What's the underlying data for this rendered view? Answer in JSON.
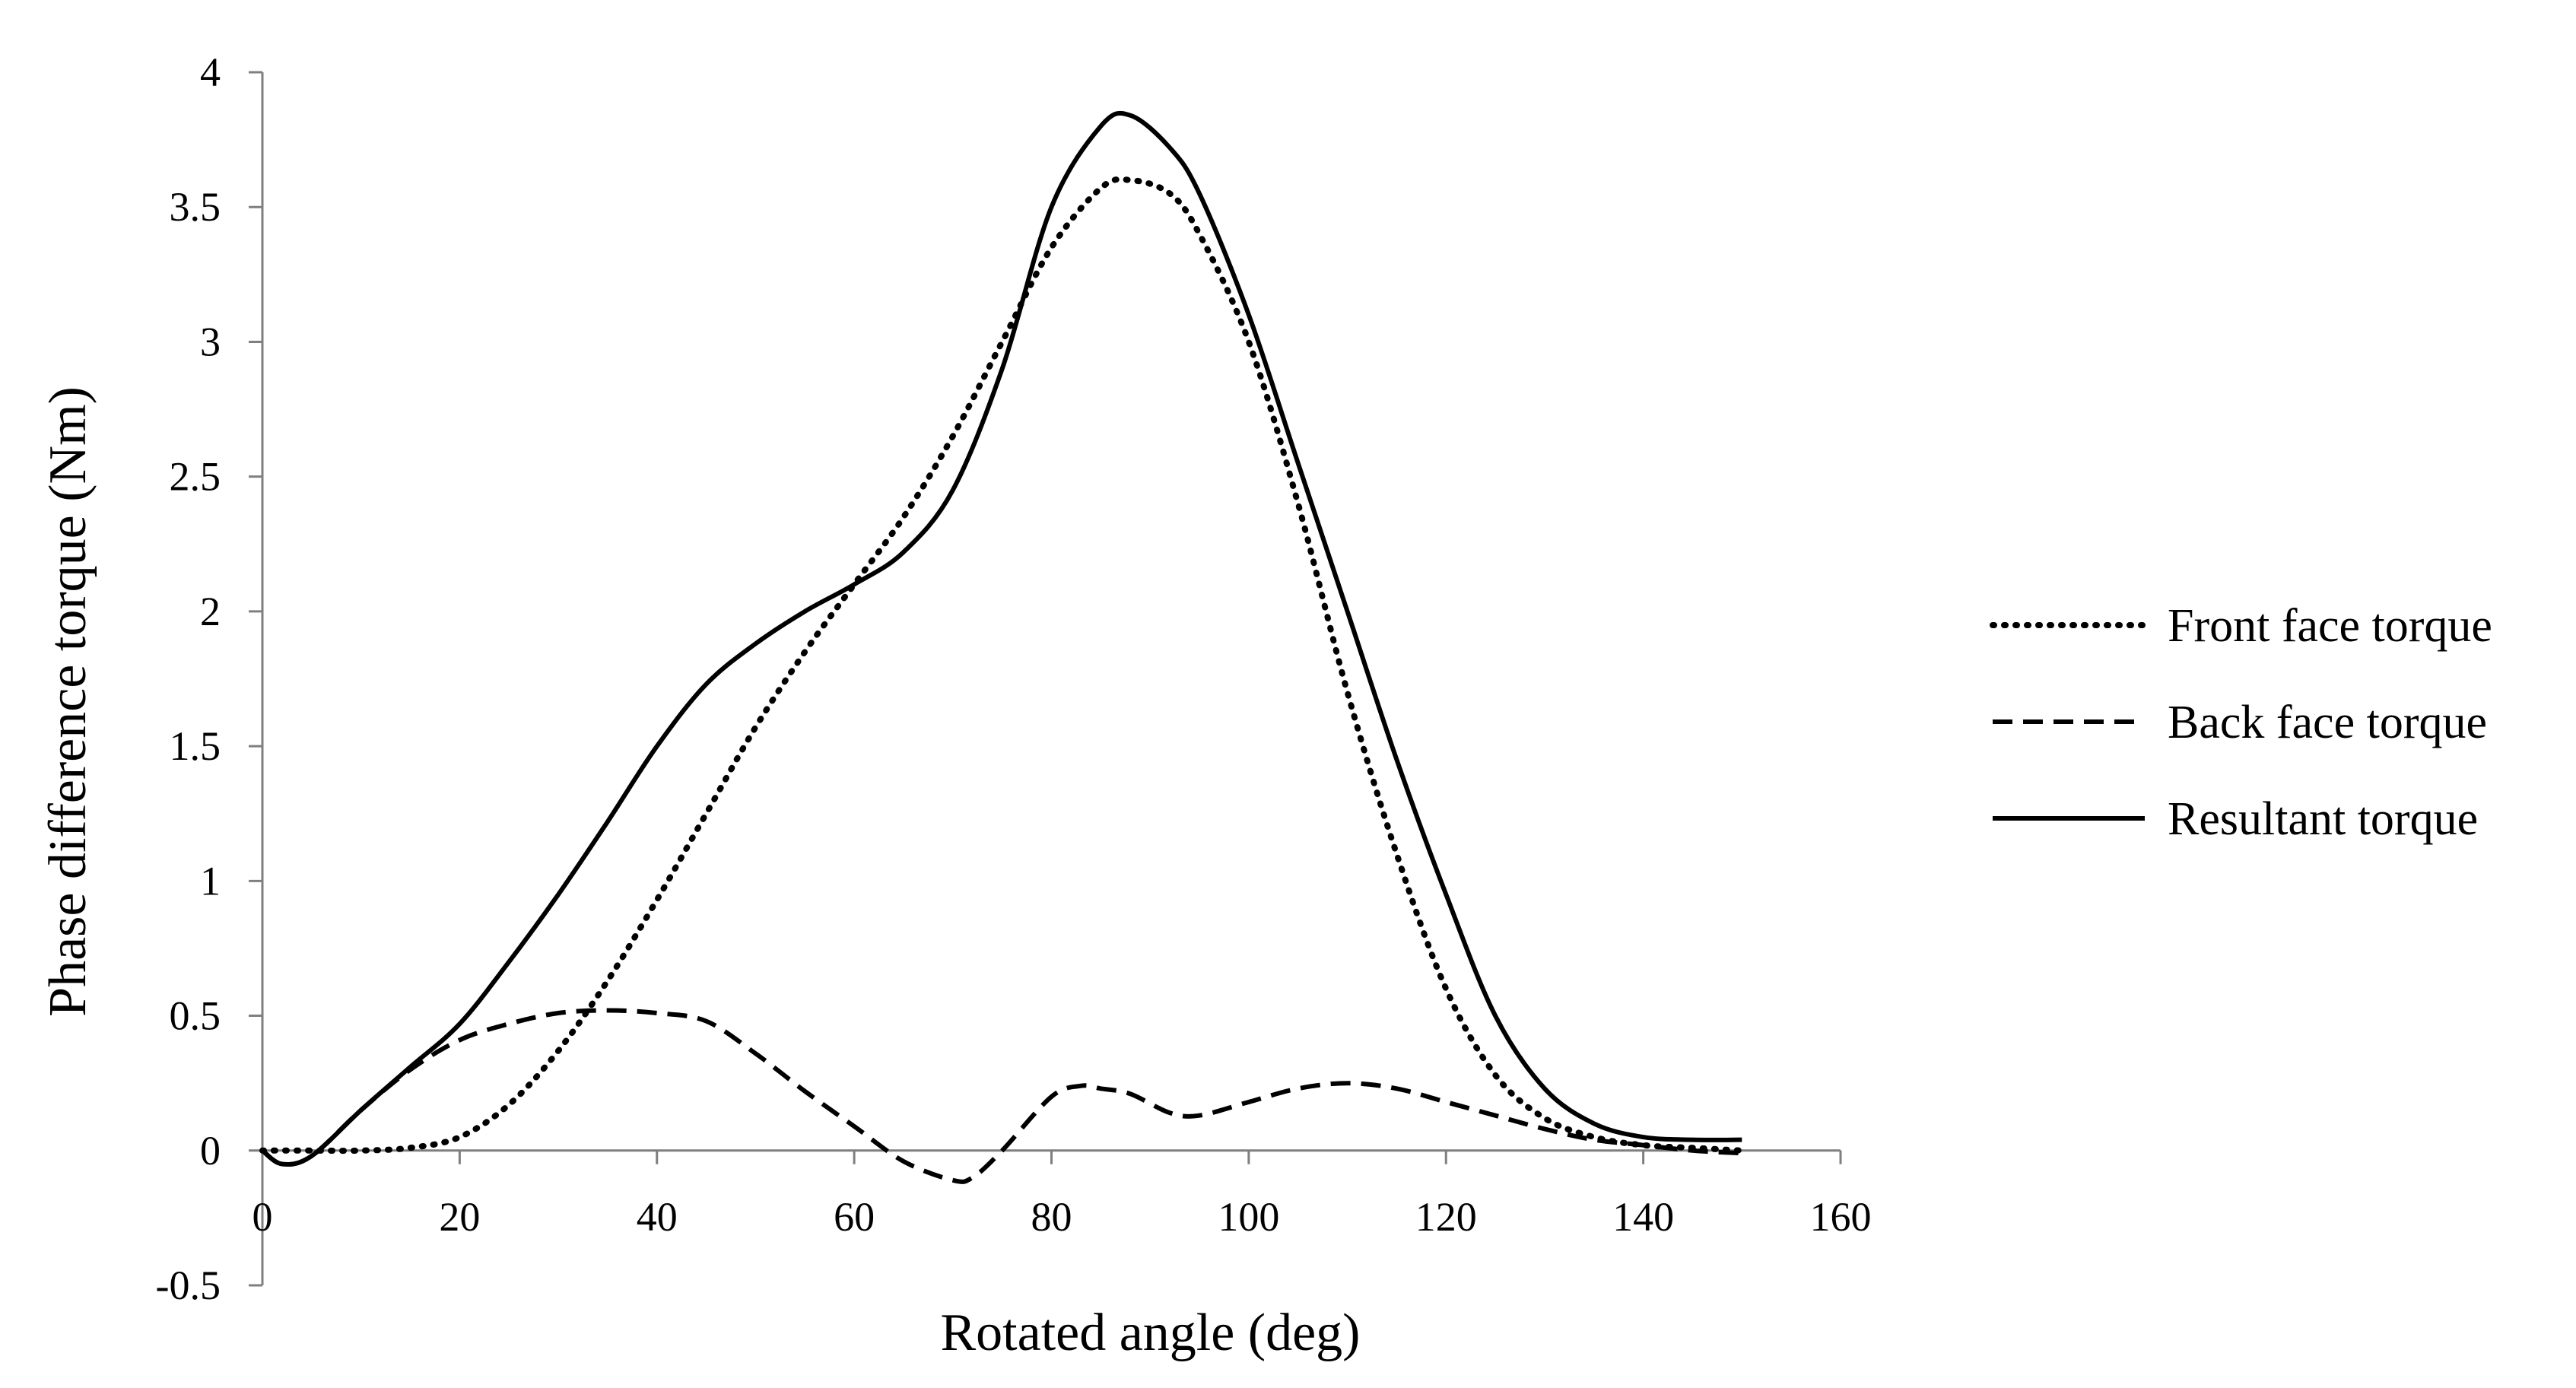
{
  "chart_data": {
    "type": "line",
    "title": "",
    "xlabel": "Rotated angle (deg)",
    "ylabel": "Phase difference torque (Nm)",
    "xlim": [
      0,
      160
    ],
    "ylim": [
      -0.5,
      4
    ],
    "xticks": [
      0,
      20,
      40,
      60,
      80,
      100,
      120,
      140,
      160
    ],
    "yticks": [
      -0.5,
      0,
      0.5,
      1,
      1.5,
      2,
      2.5,
      3,
      3.5,
      4
    ],
    "xtick_labels": [
      "0",
      "20",
      "40",
      "60",
      "80",
      "100",
      "120",
      "140",
      "160"
    ],
    "ytick_labels": [
      "-0.5",
      "0",
      "0.5",
      "1",
      "1.5",
      "2",
      "2.5",
      "3",
      "3.5",
      "4"
    ],
    "grid": false,
    "legend_position": "right",
    "series": [
      {
        "name": "Front face torque",
        "style": "dotted",
        "color": "#000000",
        "x": [
          0,
          5,
          10,
          15,
          20,
          25,
          30,
          35,
          40,
          45,
          50,
          55,
          60,
          65,
          70,
          75,
          80,
          85,
          88,
          92,
          95,
          100,
          105,
          110,
          115,
          120,
          125,
          130,
          135,
          140,
          145,
          150
        ],
        "y": [
          0,
          0,
          0,
          0.01,
          0.05,
          0.17,
          0.37,
          0.63,
          0.93,
          1.25,
          1.57,
          1.85,
          2.1,
          2.35,
          2.65,
          3.0,
          3.35,
          3.57,
          3.6,
          3.55,
          3.4,
          3.0,
          2.4,
          1.7,
          1.1,
          0.6,
          0.28,
          0.12,
          0.05,
          0.02,
          0.01,
          0.0
        ]
      },
      {
        "name": "Back face torque",
        "style": "dashed",
        "color": "#000000",
        "x": [
          0,
          2,
          5,
          10,
          15,
          20,
          25,
          30,
          35,
          40,
          45,
          50,
          55,
          60,
          65,
          70,
          72,
          75,
          80,
          83,
          85,
          88,
          92,
          95,
          100,
          105,
          110,
          115,
          120,
          125,
          130,
          135,
          140,
          145,
          150
        ],
        "y": [
          0,
          -0.05,
          -0.02,
          0.15,
          0.3,
          0.41,
          0.47,
          0.51,
          0.52,
          0.51,
          0.48,
          0.36,
          0.22,
          0.09,
          -0.04,
          -0.11,
          -0.1,
          0.0,
          0.2,
          0.24,
          0.23,
          0.21,
          0.14,
          0.13,
          0.18,
          0.23,
          0.25,
          0.23,
          0.18,
          0.13,
          0.08,
          0.04,
          0.02,
          0.0,
          -0.01
        ]
      },
      {
        "name": "Resultant torque",
        "style": "solid",
        "color": "#000000",
        "x": [
          0,
          2,
          5,
          10,
          15,
          20,
          25,
          30,
          35,
          40,
          45,
          50,
          55,
          60,
          65,
          70,
          75,
          80,
          85,
          88,
          92,
          95,
          100,
          105,
          110,
          115,
          120,
          125,
          130,
          135,
          140,
          145,
          150
        ],
        "y": [
          0,
          -0.05,
          -0.02,
          0.15,
          0.31,
          0.47,
          0.7,
          0.95,
          1.22,
          1.5,
          1.73,
          1.88,
          2.0,
          2.1,
          2.22,
          2.45,
          2.9,
          3.5,
          3.8,
          3.84,
          3.72,
          3.55,
          3.1,
          2.55,
          2.0,
          1.45,
          0.95,
          0.5,
          0.23,
          0.1,
          0.05,
          0.04,
          0.04
        ]
      }
    ]
  }
}
